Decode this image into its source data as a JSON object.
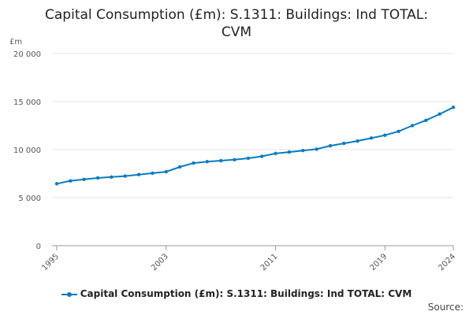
{
  "title_lines": [
    "Capital Consumption (£m): S.1311: Buildings: Ind TOTAL:",
    "CVM"
  ],
  "source_label": "Source:",
  "colors": {
    "series": "#0a7bbd",
    "grid": "#e6e6e6",
    "axis": "#999999"
  },
  "chart_data": {
    "type": "line",
    "title": "Capital Consumption (£m): S.1311: Buildings: Ind TOTAL: CVM",
    "ylabel": "£m",
    "xlabel": "",
    "ylim": [
      0,
      20000
    ],
    "xlim": [
      1995,
      2024
    ],
    "y_ticks": [
      0,
      5000,
      10000,
      15000,
      20000
    ],
    "y_tick_labels": [
      "0",
      "5 000",
      "10 000",
      "15 000",
      "20 000"
    ],
    "x_ticks": [
      1995,
      2003,
      2011,
      2019,
      2024
    ],
    "x_tick_labels": [
      "1995",
      "2003",
      "2011",
      "2019",
      "2024"
    ],
    "grid": true,
    "legend_position": "bottom",
    "series": [
      {
        "name": "Capital Consumption (£m): S.1311: Buildings: Ind TOTAL: CVM",
        "x": [
          1995,
          1996,
          1997,
          1998,
          1999,
          2000,
          2001,
          2002,
          2003,
          2004,
          2005,
          2006,
          2007,
          2008,
          2009,
          2010,
          2011,
          2012,
          2013,
          2014,
          2015,
          2016,
          2017,
          2018,
          2019,
          2020,
          2021,
          2022,
          2023,
          2024
        ],
        "values": [
          6450,
          6750,
          6900,
          7050,
          7150,
          7250,
          7400,
          7550,
          7700,
          8200,
          8600,
          8750,
          8850,
          8950,
          9100,
          9300,
          9600,
          9750,
          9900,
          10050,
          10400,
          10650,
          10900,
          11200,
          11500,
          11900,
          12500,
          13050,
          13700,
          14400
        ]
      }
    ]
  }
}
